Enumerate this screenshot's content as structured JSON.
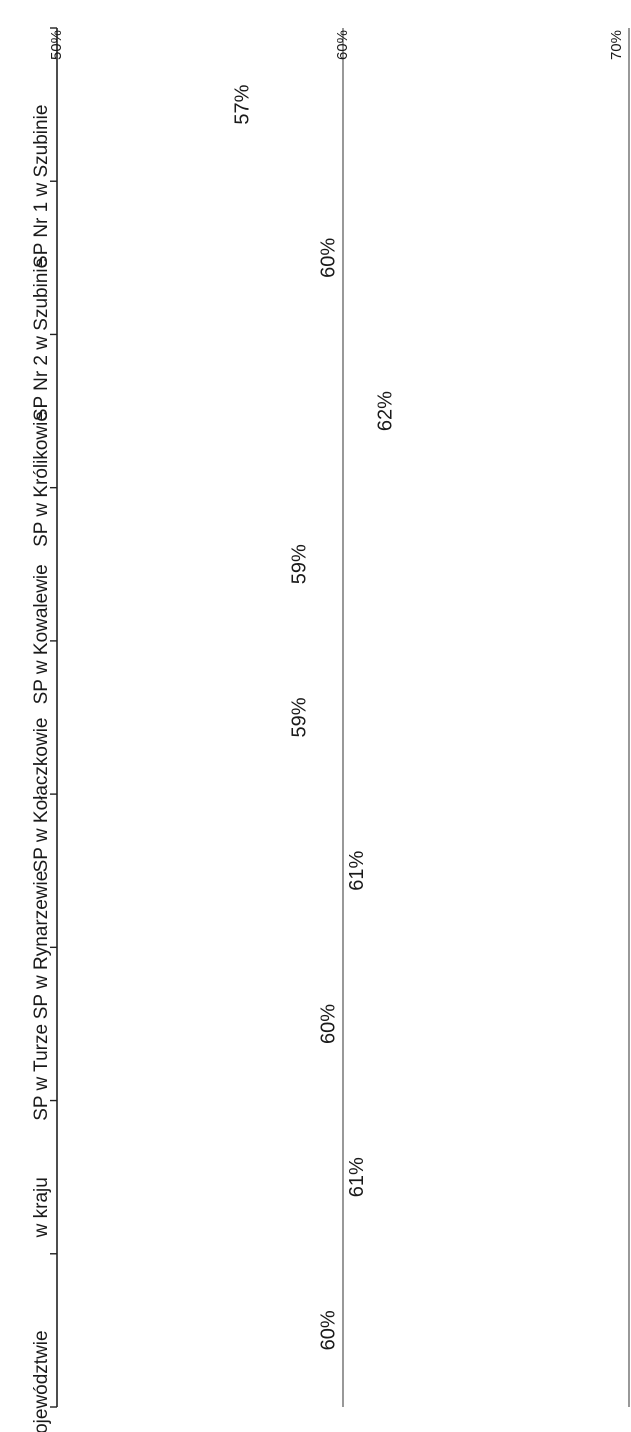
{
  "chart_data": {
    "type": "bar",
    "orientation": "rotated-90-clockwise",
    "categories": [
      "SP Nr 1 w Szubinie",
      "SP Nr 2 w Szubinie",
      "SP w Królikowie",
      "SP w Kowalewie",
      "SP w Kołaczkowie",
      "SP w Rynarzewie",
      "SP w Turze",
      "w kraju",
      "w województwie"
    ],
    "values": [
      0.57,
      0.6,
      0.62,
      0.59,
      0.59,
      0.61,
      0.6,
      0.61,
      0.6
    ],
    "value_labels": [
      "57%",
      "60%",
      "62%",
      "59%",
      "59%",
      "61%",
      "60%",
      "61%",
      "60%"
    ],
    "bar_colors": [
      "#c4c4c4",
      "#c4c4c4",
      "#c4c4c4",
      "#c4c4c4",
      "#c4c4c4",
      "#c4c4c4",
      "#c4c4c4",
      "#3a3a3a",
      "#7c7c7c"
    ],
    "ylim": [
      0.5,
      0.7
    ],
    "y_ticks": [
      0.5,
      0.6,
      0.7
    ],
    "y_tick_labels": [
      "50%",
      "60%",
      "70%"
    ],
    "gridlines": [
      0.6,
      0.7
    ],
    "grid": true,
    "legend": "none",
    "title": "",
    "xlabel": "",
    "ylabel": ""
  }
}
